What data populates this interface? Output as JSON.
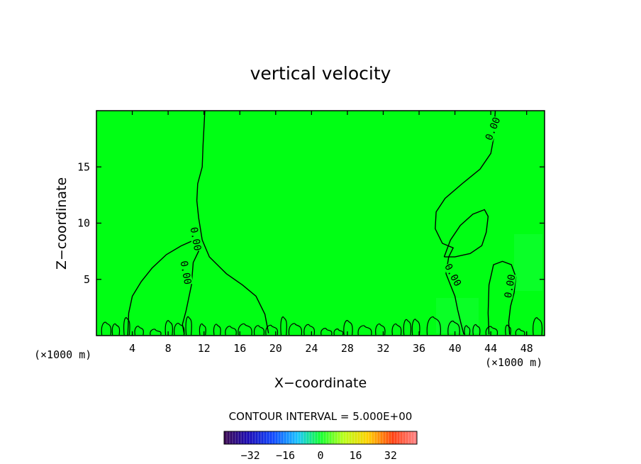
{
  "chart_data": {
    "type": "heatmap",
    "title": "vertical velocity",
    "xlabel": "X−coordinate",
    "ylabel": "Z−coordinate",
    "x_unit_left": "(×1000 m)",
    "x_unit_right": "(×1000 m)",
    "xlim": [
      0,
      50
    ],
    "ylim": [
      0,
      20
    ],
    "x_ticks": [
      4,
      8,
      12,
      16,
      20,
      24,
      28,
      32,
      36,
      40,
      44,
      48
    ],
    "y_ticks": [
      5,
      10,
      15
    ],
    "field_color": "#00ff14",
    "contour_level": "0.00",
    "contours": [
      {
        "name": "plume-left-outer",
        "points": [
          [
            12.1,
            20
          ],
          [
            11.9,
            17
          ],
          [
            11.8,
            15
          ],
          [
            11.3,
            13.5
          ],
          [
            11.2,
            12
          ],
          [
            11.4,
            10.5
          ],
          [
            11.8,
            8.5
          ],
          [
            12.6,
            7
          ],
          [
            14.5,
            5.5
          ],
          [
            16.3,
            4.5
          ],
          [
            17.8,
            3.5
          ],
          [
            18.8,
            1.9
          ],
          [
            19.2,
            0.2
          ]
        ]
      },
      {
        "name": "plume-left-inner",
        "points": [
          [
            3.5,
            0
          ],
          [
            3.6,
            2
          ],
          [
            4.0,
            3.5
          ],
          [
            5.0,
            4.8
          ],
          [
            6.2,
            6.0
          ],
          [
            7.8,
            7.2
          ],
          [
            9.5,
            8.0
          ],
          [
            11.2,
            8.6
          ],
          [
            11.4,
            7.5
          ],
          [
            10.8,
            6.5
          ],
          [
            10.6,
            4.5
          ],
          [
            10.0,
            2.2
          ],
          [
            9.6,
            1.0
          ],
          [
            9.8,
            0.1
          ]
        ]
      },
      {
        "name": "plume-right-outer",
        "points": [
          [
            44.5,
            20
          ],
          [
            44.3,
            17.5
          ],
          [
            44.0,
            16.2
          ],
          [
            42.8,
            14.8
          ],
          [
            40.8,
            13.5
          ],
          [
            38.9,
            12.2
          ],
          [
            37.9,
            11.0
          ],
          [
            37.8,
            9.5
          ],
          [
            38.6,
            8.2
          ],
          [
            39.8,
            7.8
          ],
          [
            39.3,
            7.0
          ],
          [
            39.0,
            5.5
          ],
          [
            39.5,
            4.5
          ],
          [
            40.0,
            3.5
          ],
          [
            40.3,
            2.3
          ],
          [
            40.7,
            1.0
          ],
          [
            41.0,
            0.1
          ]
        ]
      },
      {
        "name": "plume-right-inner",
        "points": [
          [
            38.8,
            7.0
          ],
          [
            39.5,
            8.5
          ],
          [
            40.6,
            9.8
          ],
          [
            42.0,
            10.8
          ],
          [
            43.3,
            11.2
          ],
          [
            43.7,
            10.6
          ],
          [
            43.5,
            9.2
          ],
          [
            43.0,
            8.0
          ],
          [
            41.7,
            7.3
          ],
          [
            40.0,
            7.0
          ],
          [
            38.8,
            7.0
          ]
        ]
      },
      {
        "name": "plume-right-far",
        "points": [
          [
            43.8,
            0.1
          ],
          [
            43.7,
            2.0
          ],
          [
            43.8,
            4.5
          ],
          [
            44.3,
            6.3
          ],
          [
            45.3,
            6.6
          ],
          [
            46.3,
            6.3
          ],
          [
            46.8,
            5.2
          ],
          [
            46.6,
            3.8
          ],
          [
            46.2,
            2.6
          ],
          [
            46.0,
            1.2
          ],
          [
            46.1,
            0.1
          ]
        ]
      }
    ],
    "contour_labels": [
      {
        "text": "0.00",
        "x": 11.1,
        "y": 8.6,
        "angle": 80
      },
      {
        "text": "0.00",
        "x": 10.0,
        "y": 5.6,
        "angle": 80
      },
      {
        "text": "0.00",
        "x": 44.2,
        "y": 18.4,
        "angle": -68
      },
      {
        "text": "0.00",
        "x": 39.8,
        "y": 5.4,
        "angle": 62
      },
      {
        "text": "0.00",
        "x": 46.1,
        "y": 4.4,
        "angle": -80
      }
    ],
    "colorbar": {
      "caption": "CONTOUR INTERVAL = 5.000E+00",
      "range": [
        -44,
        44
      ],
      "ticks": [
        -32,
        -16,
        0,
        16,
        32
      ],
      "tick_labels": [
        "−32",
        "−16",
        "0",
        "16",
        "32"
      ]
    }
  }
}
